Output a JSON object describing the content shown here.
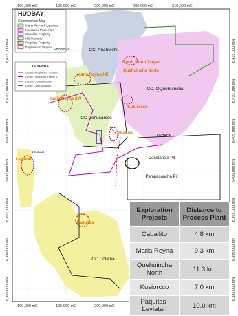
{
  "header": {
    "logo": "HUDBAY",
    "subtitle": "Communities Map"
  },
  "legend": {
    "items": [
      "Maria Reyna Properties",
      "Kusiorcco Properties",
      "Caballito Property",
      "HB Property",
      "Paquitas Property",
      "Exploration Targets"
    ],
    "title": "LEYENDA",
    "items2": [
      "Distrito Propuesto Tramo II",
      "Límite Propuesto Tramo II",
      "Distrito Comunicación",
      "Límite Comunicación"
    ]
  },
  "axes": {
    "easting": [
      "190,000 mE",
      "195,000 mE",
      "200,000 mE",
      "205,000 mE",
      "210,000 mE"
    ],
    "northing": [
      "8,415,000 mN",
      "8,410,000 mN",
      "8,405,000 mN",
      "8,400,000 mN",
      "8,395,000 mN",
      "8,390,000 mN",
      "8,385,000 mN"
    ]
  },
  "labels": [
    "CHAMACA",
    "CC. Añahuichi",
    "North Skarn Target",
    "Quehuincha Norte",
    "Maria Reyna NE",
    "Maria Reyna SW",
    "CC. QQuehuincha",
    "Kusiorcco",
    "CC Uchucarcco",
    "Caballito",
    "LIVITACA",
    "VELILLE",
    "Leviatan",
    "Constancia Pit",
    "Pampacancha Pit",
    "Paquitas",
    "CC.Collana"
  ],
  "table": {
    "headers": [
      "Exploration Projects",
      "Distance to Process Plant"
    ],
    "rows": [
      [
        "Caballito",
        "4.8 km"
      ],
      [
        "Maria Reyna",
        "9.3 km"
      ],
      [
        "Quehuincha North",
        "11.3 km"
      ],
      [
        "Kusiorcco",
        "7.0 km"
      ],
      [
        "Paquitas-Leviatan",
        "10.0 km"
      ]
    ]
  }
}
